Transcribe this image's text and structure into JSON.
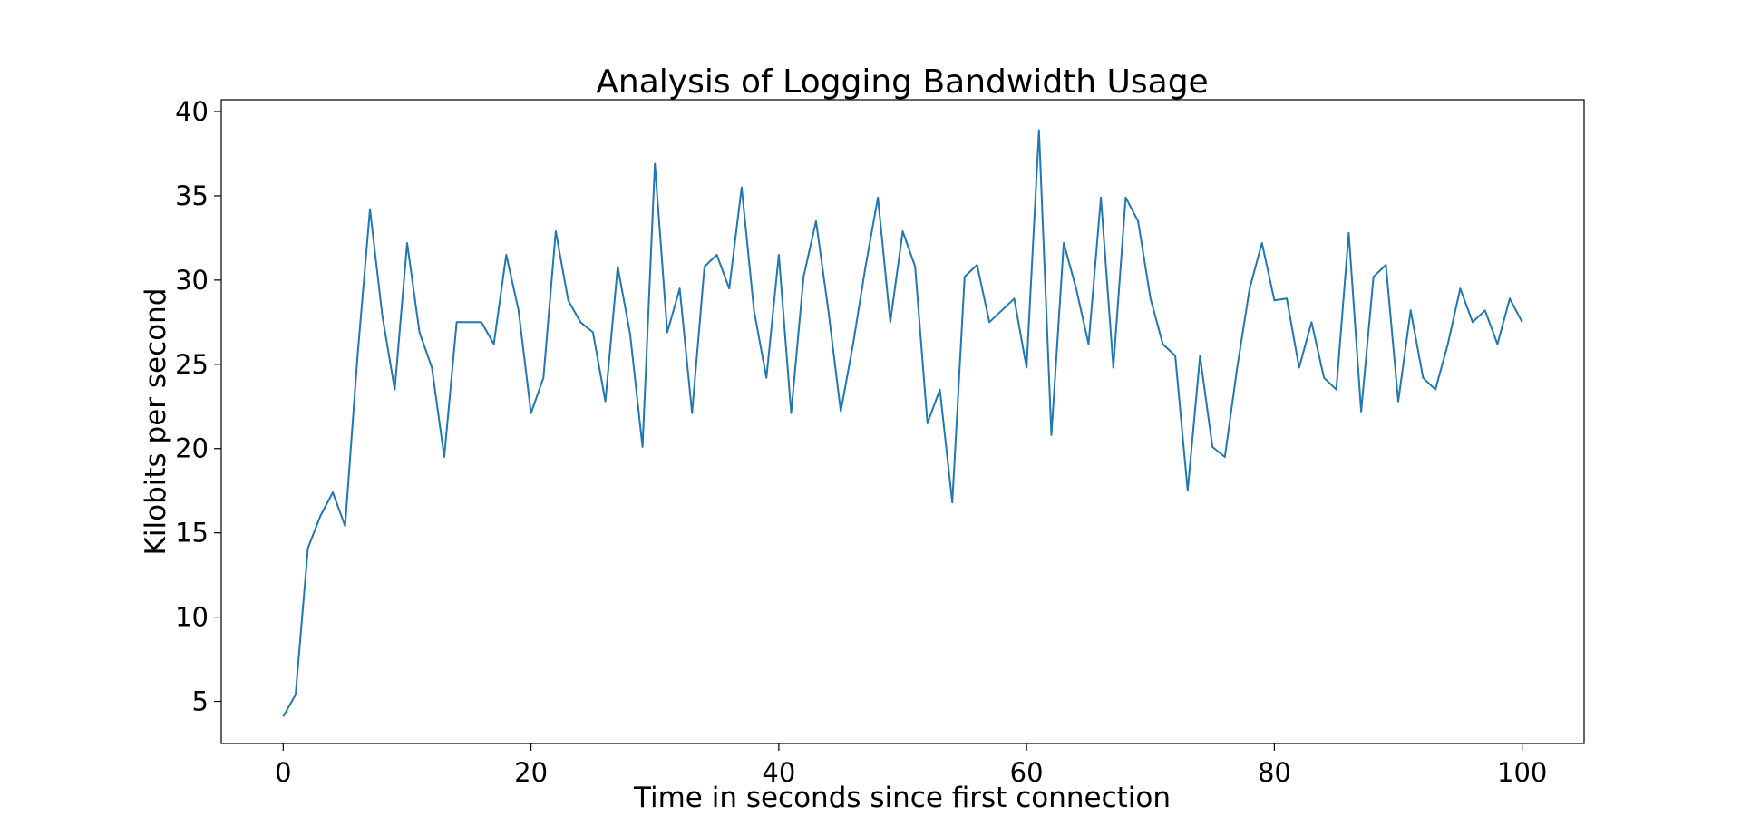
{
  "chart_data": {
    "type": "line",
    "title": "Analysis of Logging Bandwidth Usage",
    "xlabel": "Time in seconds since first connection",
    "ylabel": "Kilobits per second",
    "xlim": [
      -5,
      105
    ],
    "ylim": [
      2.5,
      40.7
    ],
    "xticks": [
      0,
      20,
      40,
      60,
      80,
      100
    ],
    "yticks": [
      5,
      10,
      15,
      20,
      25,
      30,
      35,
      40
    ],
    "grid": false,
    "series": [
      {
        "color": "#1f77b4",
        "x": [
          0,
          1,
          2,
          3,
          4,
          5,
          6,
          7,
          8,
          9,
          10,
          11,
          12,
          13,
          14,
          15,
          16,
          17,
          18,
          19,
          20,
          21,
          22,
          23,
          24,
          25,
          26,
          27,
          28,
          29,
          30,
          31,
          32,
          33,
          34,
          35,
          36,
          37,
          38,
          39,
          40,
          41,
          42,
          43,
          44,
          45,
          46,
          47,
          48,
          49,
          50,
          51,
          52,
          53,
          54,
          55,
          56,
          57,
          58,
          59,
          60,
          61,
          62,
          63,
          64,
          65,
          66,
          67,
          68,
          69,
          70,
          71,
          72,
          73,
          74,
          75,
          76,
          77,
          78,
          79,
          80,
          81,
          82,
          83,
          84,
          85,
          86,
          87,
          88,
          89,
          90,
          91,
          92,
          93,
          94,
          95,
          96,
          97,
          98,
          99,
          100
        ],
        "y": [
          4.1,
          5.4,
          14.1,
          16.0,
          17.4,
          15.4,
          25.5,
          34.2,
          27.9,
          23.5,
          32.2,
          26.9,
          24.8,
          19.5,
          27.5,
          27.5,
          27.5,
          26.2,
          31.5,
          28.2,
          22.1,
          24.2,
          32.9,
          28.8,
          27.5,
          26.9,
          22.8,
          30.8,
          26.8,
          20.1,
          36.9,
          26.9,
          29.5,
          22.1,
          30.8,
          31.5,
          29.5,
          35.5,
          28.2,
          24.2,
          31.5,
          22.1,
          30.2,
          33.5,
          28.2,
          22.2,
          26.2,
          30.8,
          34.9,
          27.5,
          32.9,
          30.8,
          21.5,
          23.5,
          16.8,
          30.2,
          30.9,
          27.5,
          28.2,
          28.9,
          24.8,
          38.9,
          20.8,
          32.2,
          29.5,
          26.2,
          34.9,
          24.8,
          34.9,
          33.5,
          28.9,
          26.2,
          25.5,
          17.5,
          25.5,
          20.1,
          19.5,
          24.8,
          29.5,
          32.2,
          28.8,
          28.9,
          24.8,
          27.5,
          24.2,
          23.5,
          32.8,
          22.2,
          30.2,
          30.9,
          22.8,
          28.2,
          24.2,
          23.5,
          26.2,
          29.5,
          27.5,
          28.2,
          26.2,
          28.9,
          27.5
        ]
      }
    ]
  }
}
